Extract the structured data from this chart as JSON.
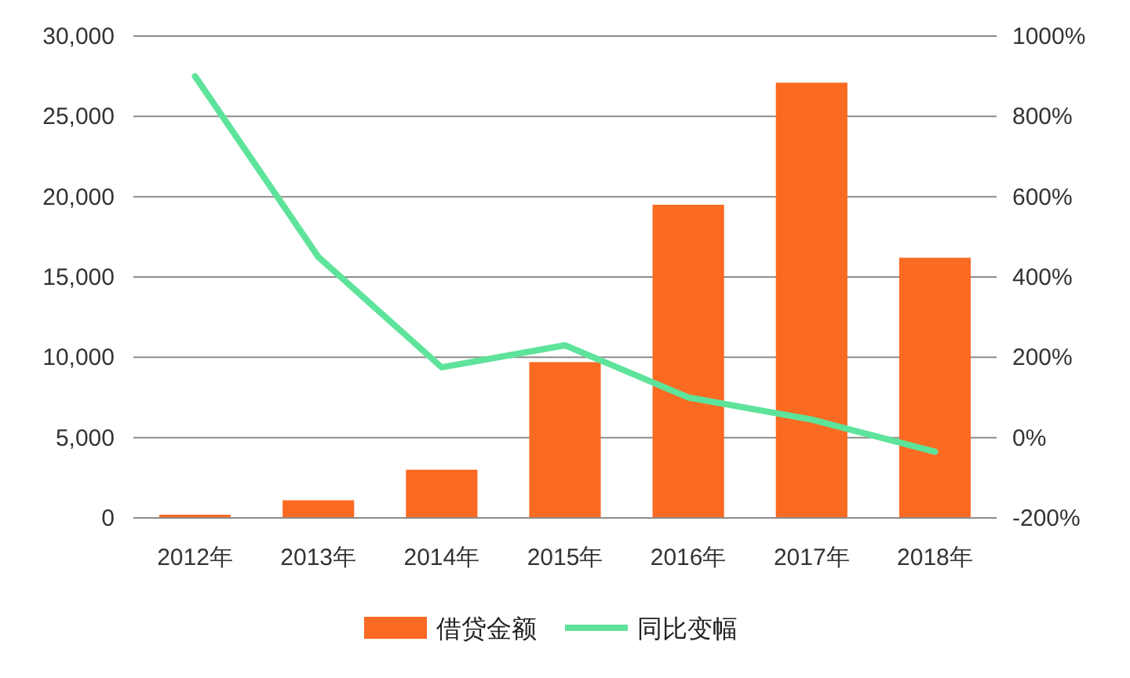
{
  "chart_data": {
    "type": "bar",
    "categories": [
      "2012年",
      "2013年",
      "2014年",
      "2015年",
      "2016年",
      "2017年",
      "2018年"
    ],
    "series": [
      {
        "name": "借贷金额",
        "color": "#fb6a22",
        "values": [
          200,
          1100,
          3000,
          9700,
          19500,
          27100,
          16200
        ]
      },
      {
        "name": "同比变幅",
        "type": "line",
        "axis": "y2",
        "color": "#5ee39b",
        "values": [
          900,
          450,
          175,
          230,
          100,
          45,
          -35
        ]
      }
    ],
    "ylim": [
      0,
      30000
    ],
    "yticks": [
      {
        "value": 0,
        "label": "0"
      },
      {
        "value": 5000,
        "label": "5,000"
      },
      {
        "value": 10000,
        "label": "10,000"
      },
      {
        "value": 15000,
        "label": "15,000"
      },
      {
        "value": 20000,
        "label": "20,000"
      },
      {
        "value": 25000,
        "label": "25,000"
      },
      {
        "value": 30000,
        "label": "30,000"
      }
    ],
    "y2lim": [
      -200,
      1000
    ],
    "y2ticks": [
      {
        "value": -200,
        "label": "-200%"
      },
      {
        "value": 0,
        "label": "0%"
      },
      {
        "value": 200,
        "label": "200%"
      },
      {
        "value": 400,
        "label": "400%"
      },
      {
        "value": 600,
        "label": "600%"
      },
      {
        "value": 800,
        "label": "800%"
      },
      {
        "value": 1000,
        "label": "1000%"
      }
    ],
    "grid": "y",
    "legend": "bottom",
    "marker": "none"
  }
}
